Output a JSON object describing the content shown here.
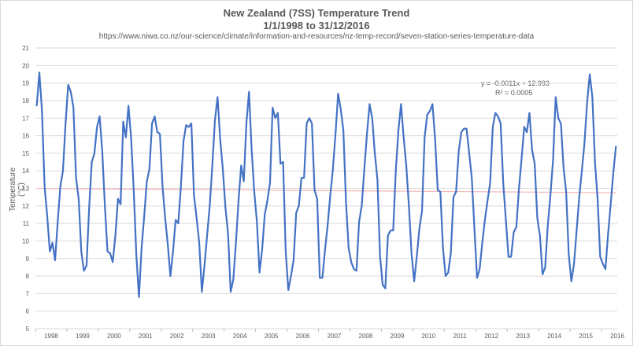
{
  "chart_data": {
    "type": "line",
    "title": "New Zealand (7SS) Temperature Trend",
    "subtitle": "1/1/1998 to 31/12/2016",
    "source": "https://www.niwa.co.nz/our-science/climate/information-and-resources/nz-temp-record/seven-station-series-temperature-data",
    "xlabel": "",
    "ylabel": "Temperature (°C)",
    "ylim": [
      5,
      21
    ],
    "yticks": [
      5,
      6,
      7,
      8,
      9,
      10,
      11,
      12,
      13,
      14,
      15,
      16,
      17,
      18,
      19,
      20,
      21
    ],
    "years": [
      "1998",
      "1999",
      "2000",
      "2001",
      "2002",
      "2003",
      "2004",
      "2005",
      "2006",
      "2007",
      "2008",
      "2009",
      "2010",
      "2011",
      "2012",
      "2013",
      "2014",
      "2015",
      "2016"
    ],
    "grid": true,
    "series": [
      {
        "name": "",
        "color": "#4472c4",
        "values": [
          17.7,
          19.6,
          17.4,
          13.1,
          11.4,
          9.4,
          9.9,
          8.9,
          11.1,
          13.1,
          14.0,
          16.7,
          18.9,
          18.5,
          17.6,
          13.6,
          12.4,
          9.4,
          8.3,
          8.6,
          11.9,
          14.5,
          15.0,
          16.5,
          17.1,
          15.1,
          12.0,
          9.4,
          9.3,
          8.8,
          10.3,
          12.4,
          12.1,
          16.8,
          15.9,
          17.7,
          15.9,
          12.9,
          9.2,
          6.8,
          9.6,
          11.4,
          13.4,
          14.1,
          16.7,
          17.1,
          16.2,
          16.1,
          13.1,
          11.3,
          9.8,
          8.0,
          9.4,
          11.2,
          11.0,
          13.1,
          15.7,
          16.6,
          16.5,
          16.7,
          12.6,
          11.3,
          9.9,
          7.1,
          8.6,
          10.3,
          12.0,
          14.3,
          16.9,
          18.2,
          15.8,
          14.1,
          11.9,
          10.4,
          7.1,
          7.8,
          9.9,
          12.3,
          14.3,
          13.4,
          16.7,
          18.5,
          15.2,
          12.8,
          11.1,
          8.2,
          9.5,
          11.5,
          12.3,
          13.3,
          17.6,
          17.0,
          17.3,
          14.4,
          14.5,
          9.4,
          7.2,
          8.0,
          8.9,
          11.6,
          12.0,
          13.6,
          13.6,
          16.7,
          17.0,
          16.7,
          12.9,
          12.4,
          7.9,
          7.9,
          9.5,
          10.9,
          12.6,
          14.1,
          16.1,
          18.4,
          17.5,
          16.3,
          12.2,
          9.6,
          8.8,
          8.4,
          8.3,
          11.1,
          12.0,
          14.1,
          16.1,
          17.8,
          17.0,
          15.0,
          13.5,
          9.1,
          7.5,
          7.3,
          10.3,
          10.6,
          10.6,
          14.0,
          16.3,
          17.8,
          15.9,
          14.3,
          12.0,
          9.3,
          7.7,
          9.1,
          10.7,
          11.7,
          15.9,
          17.2,
          17.4,
          17.8,
          15.8,
          12.9,
          12.8,
          9.6,
          8.0,
          8.2,
          9.3,
          12.5,
          12.8,
          15.1,
          16.2,
          16.4,
          16.4,
          15.0,
          13.6,
          10.7,
          7.9,
          8.4,
          9.9,
          11.2,
          12.3,
          13.3,
          16.5,
          17.3,
          17.1,
          16.7,
          13.3,
          11.2,
          9.1,
          9.1,
          10.5,
          10.8,
          13.0,
          14.7,
          16.5,
          16.2,
          17.3,
          15.2,
          14.4,
          11.3,
          10.3,
          8.1,
          8.5,
          10.9,
          12.6,
          14.6,
          18.2,
          17.0,
          16.7,
          14.2,
          12.8,
          9.2,
          7.7,
          8.7,
          10.6,
          12.5,
          14.0,
          15.6,
          17.9,
          19.5,
          18.2,
          14.5,
          12.4,
          9.1,
          8.7,
          8.4,
          10.4,
          12.1,
          13.9,
          15.4
        ]
      }
    ],
    "trendline": {
      "color": "#f4b6b6",
      "slope": -0.0011,
      "intercept": 12.993,
      "equation_label": "y = -0.0011x + 12.993",
      "r2_label": "R² = 0.0005"
    }
  }
}
